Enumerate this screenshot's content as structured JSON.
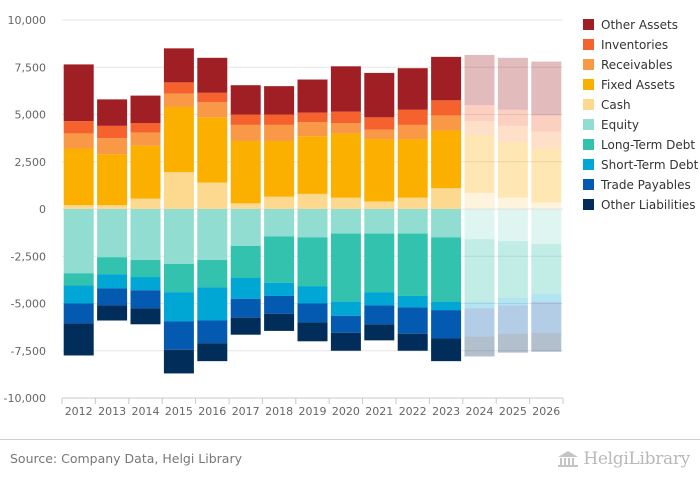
{
  "chart_data": {
    "type": "bar",
    "stacked": true,
    "categories": [
      "2012",
      "2013",
      "2014",
      "2015",
      "2016",
      "2017",
      "2018",
      "2019",
      "2020",
      "2021",
      "2022",
      "2023",
      "2024",
      "2025",
      "2026"
    ],
    "forecast_from_index": 12,
    "ylim": [
      -10000,
      10000
    ],
    "yticks": [
      -10000,
      -7500,
      -5000,
      -2500,
      0,
      2500,
      5000,
      7500,
      10000
    ],
    "ytick_labels": [
      "-10,000",
      "-7,500",
      "-5,000",
      "-2,500",
      "0",
      "2,500",
      "5,000",
      "7,500",
      "10,000"
    ],
    "grid": true,
    "legend_position": "right",
    "assets": [
      {
        "name": "Cash",
        "color": "#fcd98f",
        "values": [
          200,
          200,
          550,
          1950,
          1400,
          300,
          650,
          800,
          600,
          400,
          600,
          1100,
          850,
          600,
          350
        ]
      },
      {
        "name": "Fixed Assets",
        "color": "#fbb000",
        "values": [
          3000,
          2700,
          2800,
          3450,
          3450,
          3300,
          2950,
          3050,
          3400,
          3300,
          3100,
          3050,
          3050,
          2950,
          2850
        ]
      },
      {
        "name": "Receivables",
        "color": "#f99846",
        "values": [
          800,
          850,
          700,
          700,
          800,
          850,
          850,
          750,
          550,
          500,
          750,
          800,
          750,
          850,
          900
        ]
      },
      {
        "name": "Inventories",
        "color": "#f5622d",
        "values": [
          650,
          650,
          500,
          600,
          500,
          550,
          550,
          500,
          600,
          650,
          800,
          800,
          850,
          850,
          850
        ]
      },
      {
        "name": "Other Assets",
        "color": "#a01f24",
        "values": [
          3000,
          1400,
          1450,
          1800,
          1850,
          1550,
          1500,
          1750,
          2400,
          2350,
          2200,
          2300,
          2650,
          2750,
          2850
        ]
      }
    ],
    "liabilities": [
      {
        "name": "Equity",
        "color": "#91ddd1",
        "values": [
          3400,
          2550,
          2700,
          2900,
          2700,
          1950,
          1450,
          1500,
          1300,
          1300,
          1300,
          1500,
          1600,
          1700,
          1850
        ]
      },
      {
        "name": "Long-Term Debt",
        "color": "#32c2ad",
        "values": [
          650,
          900,
          900,
          1500,
          1450,
          1700,
          2450,
          2600,
          3600,
          3100,
          3300,
          3400,
          3300,
          3000,
          2650
        ]
      },
      {
        "name": "Short-Term Debt",
        "color": "#00a7d5",
        "values": [
          950,
          750,
          700,
          1550,
          1750,
          1100,
          700,
          900,
          750,
          700,
          600,
          450,
          350,
          400,
          400
        ]
      },
      {
        "name": "Trade Payables",
        "color": "#045ab0",
        "values": [
          1050,
          900,
          950,
          1500,
          1200,
          1000,
          950,
          1000,
          900,
          1000,
          1400,
          1500,
          1500,
          1500,
          1650
        ]
      },
      {
        "name": "Other Liabilities",
        "color": "#002d59",
        "values": [
          1700,
          800,
          850,
          1250,
          950,
          900,
          900,
          1000,
          950,
          850,
          900,
          1200,
          1050,
          1000,
          1000
        ]
      }
    ],
    "legend": [
      {
        "name": "Other Assets",
        "color": "#a01f24"
      },
      {
        "name": "Inventories",
        "color": "#f5622d"
      },
      {
        "name": "Receivables",
        "color": "#f99846"
      },
      {
        "name": "Fixed Assets",
        "color": "#fbb000"
      },
      {
        "name": "Cash",
        "color": "#fcd98f"
      },
      {
        "name": "Equity",
        "color": "#91ddd1"
      },
      {
        "name": "Long-Term Debt",
        "color": "#32c2ad"
      },
      {
        "name": "Short-Term Debt",
        "color": "#00a7d5"
      },
      {
        "name": "Trade Payables",
        "color": "#045ab0"
      },
      {
        "name": "Other Liabilities",
        "color": "#002d59"
      }
    ],
    "title": "",
    "xlabel": "",
    "ylabel": ""
  },
  "footer": {
    "source": "Source: Company Data, Helgi Library",
    "logo_text": "HelgiLibrary",
    "logo_icon": "library-building-icon"
  }
}
